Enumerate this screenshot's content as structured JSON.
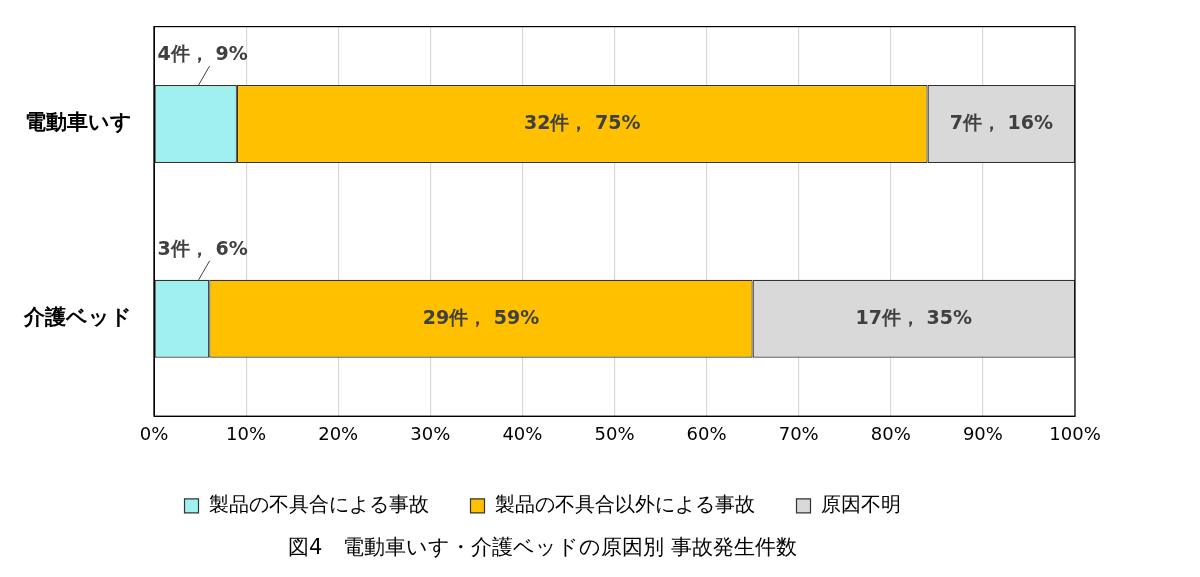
{
  "chart_data": {
    "type": "bar",
    "title": "図4　電動車いす・介護ベッドの原因別 事故発生件数",
    "orientation": "horizontal",
    "stacked": true,
    "categories": [
      "電動車いす",
      "介護ベッド"
    ],
    "series": [
      {
        "name": "製品の不具合による事故",
        "color": "#a0f0f0",
        "values": [
          9,
          6
        ],
        "value_labels": [
          "4件， 9%",
          "3件， 6%"
        ]
      },
      {
        "name": "製品の不具合以外による事故",
        "color": "#ffc000",
        "values": [
          75,
          59
        ],
        "value_labels": [
          "32件， 75%",
          "29件， 59%"
        ]
      },
      {
        "name": "原因不明",
        "color": "#d9d9d9",
        "values": [
          16,
          35
        ],
        "value_labels": [
          "7件， 16%",
          "17件， 35%"
        ]
      }
    ],
    "xlim": [
      0,
      100
    ],
    "xticks": [
      {
        "value": 0,
        "label": "0%"
      },
      {
        "value": 10,
        "label": "10%"
      },
      {
        "value": 20,
        "label": "20%"
      },
      {
        "value": 30,
        "label": "30%"
      },
      {
        "value": 40,
        "label": "40%"
      },
      {
        "value": 50,
        "label": "50%"
      },
      {
        "value": 60,
        "label": "60%"
      },
      {
        "value": 70,
        "label": "70%"
      },
      {
        "value": 80,
        "label": "80%"
      },
      {
        "value": 90,
        "label": "90%"
      },
      {
        "value": 100,
        "label": "100%"
      }
    ],
    "grid": true,
    "legend": "bottom",
    "data_labels": true
  }
}
